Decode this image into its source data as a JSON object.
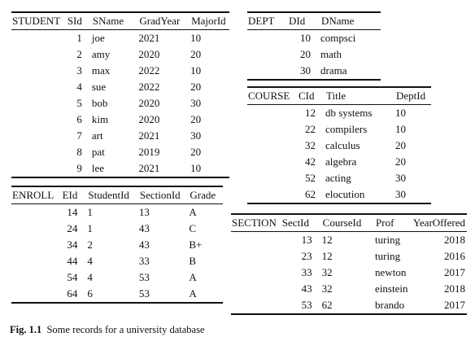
{
  "student": {
    "name": "STUDENT",
    "columns": [
      "SId",
      "SName",
      "GradYear",
      "MajorId"
    ],
    "rows": [
      [
        "1",
        "joe",
        "2021",
        "10"
      ],
      [
        "2",
        "amy",
        "2020",
        "20"
      ],
      [
        "3",
        "max",
        "2022",
        "10"
      ],
      [
        "4",
        "sue",
        "2022",
        "20"
      ],
      [
        "5",
        "bob",
        "2020",
        "30"
      ],
      [
        "6",
        "kim",
        "2020",
        "20"
      ],
      [
        "7",
        "art",
        "2021",
        "30"
      ],
      [
        "8",
        "pat",
        "2019",
        "20"
      ],
      [
        "9",
        "lee",
        "2021",
        "10"
      ]
    ]
  },
  "dept": {
    "name": "DEPT",
    "columns": [
      "DId",
      "DName"
    ],
    "rows": [
      [
        "10",
        "compsci"
      ],
      [
        "20",
        "math"
      ],
      [
        "30",
        "drama"
      ]
    ]
  },
  "course": {
    "name": "COURSE",
    "columns": [
      "CId",
      "Title",
      "DeptId"
    ],
    "rows": [
      [
        "12",
        "db systems",
        "10"
      ],
      [
        "22",
        "compilers",
        "10"
      ],
      [
        "32",
        "calculus",
        "20"
      ],
      [
        "42",
        "algebra",
        "20"
      ],
      [
        "52",
        "acting",
        "30"
      ],
      [
        "62",
        "elocution",
        "30"
      ]
    ]
  },
  "enroll": {
    "name": "ENROLL",
    "columns": [
      "EId",
      "StudentId",
      "SectionId",
      "Grade"
    ],
    "rows": [
      [
        "14",
        "1",
        "13",
        "A"
      ],
      [
        "24",
        "1",
        "43",
        "C"
      ],
      [
        "34",
        "2",
        "43",
        "B+"
      ],
      [
        "44",
        "4",
        "33",
        "B"
      ],
      [
        "54",
        "4",
        "53",
        "A"
      ],
      [
        "64",
        "6",
        "53",
        "A"
      ]
    ]
  },
  "section": {
    "name": "SECTION",
    "columns": [
      "SectId",
      "CourseId",
      "Prof",
      "YearOffered"
    ],
    "rows": [
      [
        "13",
        "12",
        "turing",
        "2018"
      ],
      [
        "23",
        "12",
        "turing",
        "2016"
      ],
      [
        "33",
        "32",
        "newton",
        "2017"
      ],
      [
        "43",
        "32",
        "einstein",
        "2018"
      ],
      [
        "53",
        "62",
        "brando",
        "2017"
      ]
    ]
  },
  "caption": {
    "label": "Fig. 1.1",
    "text": "Some records for a university database"
  }
}
